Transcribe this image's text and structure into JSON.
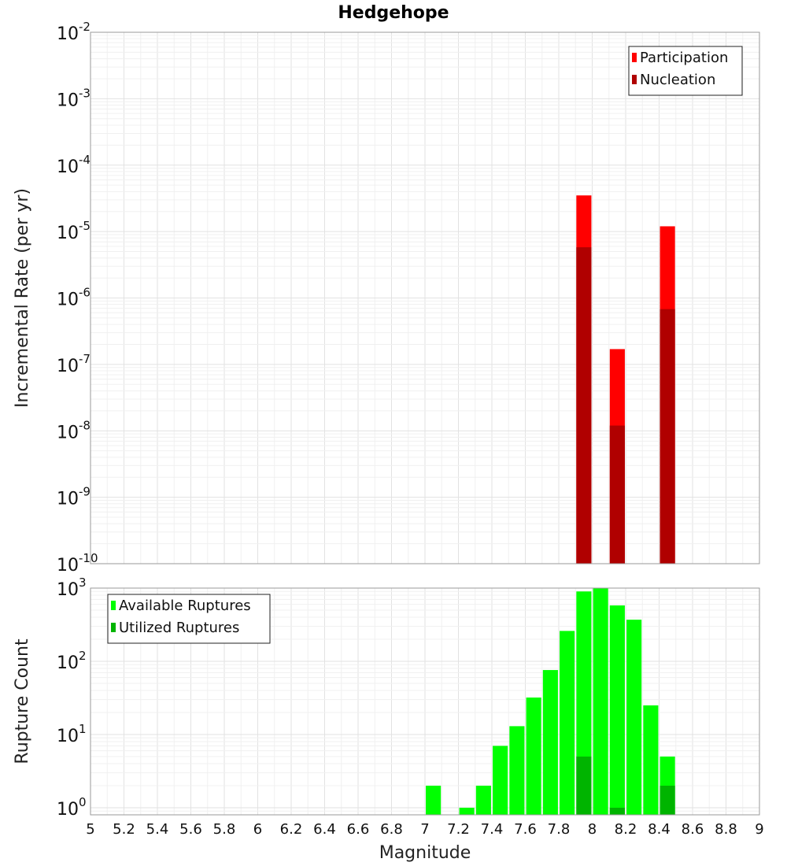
{
  "chart_data": [
    {
      "type": "bar",
      "title": "Hedgehope",
      "xlabel": "",
      "ylabel": "Incremental Rate (per yr)",
      "yscale": "log",
      "xlim": [
        5,
        9
      ],
      "ylim": [
        1e-10,
        0.01
      ],
      "grid": true,
      "legend_position": "top-right",
      "bar_width": 0.09,
      "series": [
        {
          "name": "Participation",
          "color": "#ff0000",
          "x": [
            7.95,
            8.15,
            8.45
          ],
          "values": [
            3.5e-05,
            1.7e-07,
            1.2e-05
          ]
        },
        {
          "name": "Nucleation",
          "color": "#b00000",
          "x": [
            7.95,
            8.15,
            8.45
          ],
          "values": [
            5.8e-06,
            1.2e-08,
            6.8e-07
          ]
        }
      ],
      "yticks": [
        {
          "base": "10",
          "exp": "-10",
          "value": 1e-10
        },
        {
          "base": "10",
          "exp": "-9",
          "value": 1e-09
        },
        {
          "base": "10",
          "exp": "-8",
          "value": 1e-08
        },
        {
          "base": "10",
          "exp": "-7",
          "value": 1e-07
        },
        {
          "base": "10",
          "exp": "-6",
          "value": 1e-06
        },
        {
          "base": "10",
          "exp": "-5",
          "value": 1e-05
        },
        {
          "base": "10",
          "exp": "-4",
          "value": 0.0001
        },
        {
          "base": "10",
          "exp": "-3",
          "value": 0.001
        },
        {
          "base": "10",
          "exp": "-2",
          "value": 0.01
        }
      ]
    },
    {
      "type": "bar",
      "xlabel": "Magnitude",
      "ylabel": "Rupture Count",
      "yscale": "log",
      "xlim": [
        5,
        9
      ],
      "ylim": [
        0.8,
        1000
      ],
      "grid": true,
      "legend_position": "top-left",
      "bar_width": 0.09,
      "series": [
        {
          "name": "Available Ruptures",
          "color": "#00ff00",
          "x": [
            7.05,
            7.25,
            7.35,
            7.45,
            7.55,
            7.65,
            7.75,
            7.85,
            7.95,
            8.05,
            8.15,
            8.25,
            8.35,
            8.45
          ],
          "values": [
            2,
            1,
            2,
            7,
            13,
            32,
            76,
            260,
            900,
            1000,
            580,
            370,
            25,
            5
          ]
        },
        {
          "name": "Utilized Ruptures",
          "color": "#00b400",
          "x": [
            7.95,
            8.15,
            8.45
          ],
          "values": [
            5,
            1,
            2
          ]
        }
      ],
      "xticks": [
        "5",
        "5.2",
        "5.4",
        "5.6",
        "5.8",
        "6",
        "6.2",
        "6.4",
        "6.6",
        "6.8",
        "7",
        "7.2",
        "7.4",
        "7.6",
        "7.8",
        "8",
        "8.2",
        "8.4",
        "8.6",
        "8.8",
        "9"
      ],
      "yticks": [
        {
          "base": "10",
          "exp": "0",
          "value": 1
        },
        {
          "base": "10",
          "exp": "1",
          "value": 10
        },
        {
          "base": "10",
          "exp": "2",
          "value": 100
        },
        {
          "base": "10",
          "exp": "3",
          "value": 1000
        }
      ]
    }
  ]
}
